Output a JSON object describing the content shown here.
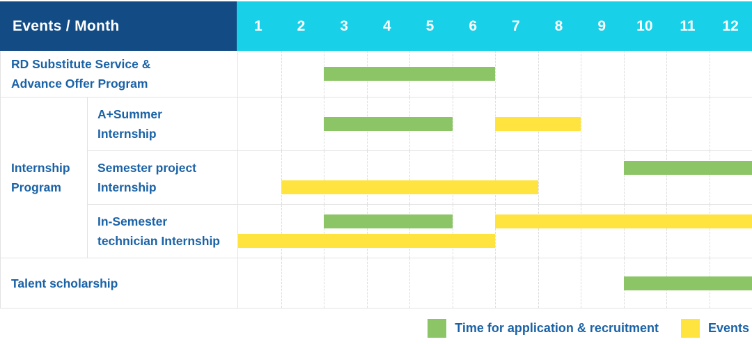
{
  "colors": {
    "header_bg": "#134C85",
    "months_bg": "#18D0E8",
    "green": "#8BC565",
    "yellow": "#FFE440",
    "label_text": "#1A62A6",
    "row_border": "#E2E2E2",
    "grid_line": "#DCDCDC"
  },
  "header": {
    "label": "Events / Month",
    "months": [
      "1",
      "2",
      "3",
      "4",
      "5",
      "6",
      "7",
      "8",
      "9",
      "10",
      "11",
      "12"
    ]
  },
  "chart_data": {
    "type": "bar",
    "subtype": "gantt-schedule",
    "title": "Events / Month",
    "x_axis": {
      "label": "Month",
      "ticks": [
        1,
        2,
        3,
        4,
        5,
        6,
        7,
        8,
        9,
        10,
        11,
        12
      ],
      "range": [
        1,
        12
      ],
      "grid": "dashed-vertical"
    },
    "legend_position": "bottom-right",
    "legend": [
      {
        "name": "Time for application & recruitment",
        "color_key": "green"
      },
      {
        "name": "Events",
        "color_key": "yellow"
      }
    ],
    "row_groups": [
      {
        "label": "Internship Program",
        "label_lines": [
          "Internship",
          "Program"
        ],
        "row_indexes": [
          1,
          2,
          3
        ]
      }
    ],
    "rows": [
      {
        "label": "RD Substitute Service & Advance Offer Program",
        "label_lines": [
          "RD Substitute Service &",
          "Advance Offer Program"
        ],
        "group": "",
        "bars": [
          {
            "series": "Time for application & recruitment",
            "color_key": "green",
            "start_month": 3,
            "end_month": 6,
            "lane": "center"
          }
        ]
      },
      {
        "label": "A+Summer Internship",
        "label_lines": [
          "A+Summer",
          "Internship"
        ],
        "group": "Internship Program",
        "bars": [
          {
            "series": "Time for application & recruitment",
            "color_key": "green",
            "start_month": 3,
            "end_month": 5,
            "lane": "center"
          },
          {
            "series": "Events",
            "color_key": "yellow",
            "start_month": 7,
            "end_month": 8,
            "lane": "center"
          }
        ]
      },
      {
        "label": "Semester project Internship",
        "label_lines": [
          "Semester project",
          "Internship"
        ],
        "group": "Internship Program",
        "bars": [
          {
            "series": "Time for application & recruitment",
            "color_key": "green",
            "start_month": 10,
            "end_month": 12,
            "lane": "top"
          },
          {
            "series": "Events",
            "color_key": "yellow",
            "start_month": 2,
            "end_month": 7,
            "lane": "bottom"
          }
        ]
      },
      {
        "label": "In-Semester technician Internship",
        "label_lines": [
          "In-Semester",
          "technician Internship"
        ],
        "group": "Internship Program",
        "bars": [
          {
            "series": "Time for application & recruitment",
            "color_key": "green",
            "start_month": 3,
            "end_month": 5,
            "lane": "top"
          },
          {
            "series": "Events",
            "color_key": "yellow",
            "start_month": 7,
            "end_month": 12,
            "lane": "top"
          },
          {
            "series": "Events",
            "color_key": "yellow",
            "start_month": 1,
            "end_month": 6,
            "lane": "bottom"
          }
        ]
      },
      {
        "label": "Talent scholarship",
        "label_lines": [
          "Talent scholarship"
        ],
        "group": "",
        "bars": [
          {
            "series": "Time for application & recruitment",
            "color_key": "green",
            "start_month": 10,
            "end_month": 12,
            "lane": "center"
          }
        ]
      }
    ]
  }
}
